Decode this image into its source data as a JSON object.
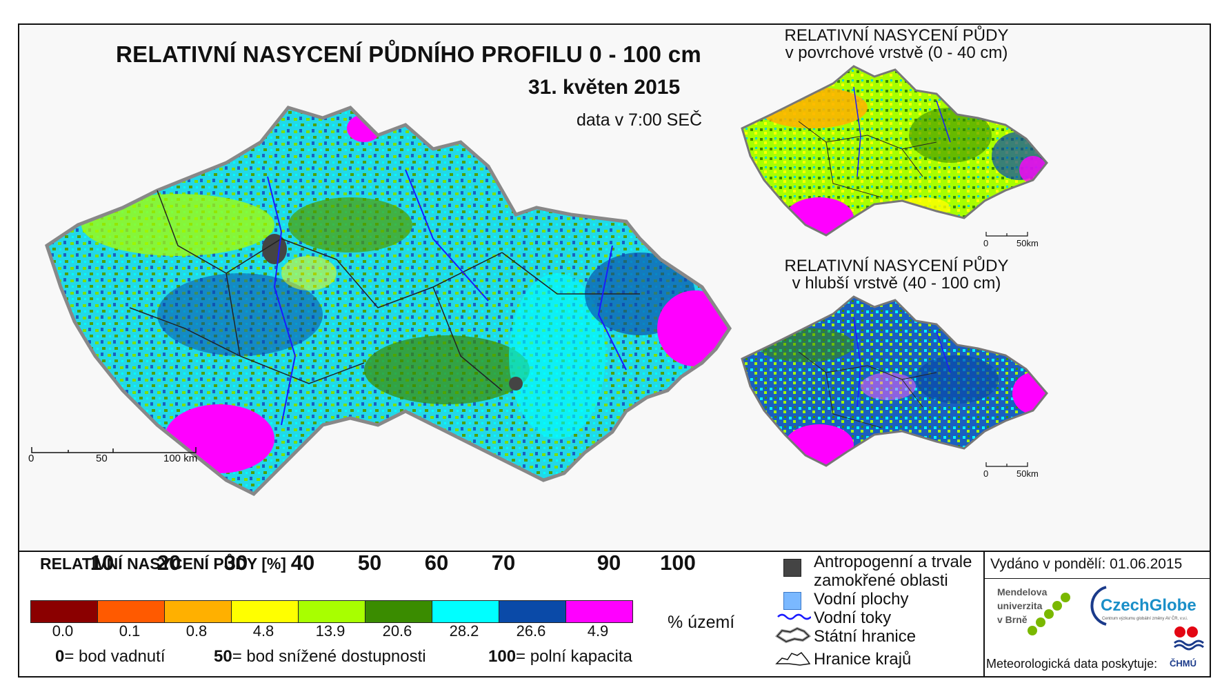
{
  "main_map": {
    "title": "RELATIVNÍ NASYCENÍ PŮDNÍHO PROFILU 0 - 100 cm",
    "date": "31. květen 2015",
    "data_time": "data v 7:00 SEČ",
    "scale": [
      "0",
      "50",
      "100 km"
    ]
  },
  "inset_top": {
    "title_line1": "RELATIVNÍ NASYCENÍ PŮDY",
    "title_line2": "v povrchové vrstvě (0 - 40 cm)",
    "scale": [
      "0",
      "50km"
    ]
  },
  "inset_bottom": {
    "title_line1": "RELATIVNÍ NASYCENÍ PŮDY",
    "title_line2": "v hlubší vrstvě (40 - 100 cm)",
    "scale": [
      "0",
      "50km"
    ]
  },
  "legend": {
    "title": "RELATIVNÍ NASYCENÍ PŮDY [%]",
    "thresholds": [
      "10",
      "20",
      "30",
      "40",
      "50",
      "60",
      "70",
      "90",
      "100"
    ],
    "classes": [
      {
        "color": "#8b0000",
        "percent_area": "0.0"
      },
      {
        "color": "#ff5a00",
        "percent_area": "0.1"
      },
      {
        "color": "#ffb000",
        "percent_area": "0.8"
      },
      {
        "color": "#ffff00",
        "percent_area": "4.8"
      },
      {
        "color": "#a8ff00",
        "percent_area": "13.9"
      },
      {
        "color": "#3a8c00",
        "percent_area": "20.6"
      },
      {
        "color": "#00ffff",
        "percent_area": "28.2"
      },
      {
        "color": "#0a4aa8",
        "percent_area": "26.6"
      },
      {
        "color": "#ff00ff",
        "percent_area": "4.9"
      }
    ],
    "unit_label": "% území",
    "definitions": [
      {
        "value": "0",
        "text": "= bod vadnutí"
      },
      {
        "value": "50",
        "text": "= bod snížené dostupnosti"
      },
      {
        "value": "100",
        "text": "= polní kapacita"
      }
    ]
  },
  "symbols": {
    "anthropogenic_line1": "Antropogenní a trvale",
    "anthropogenic_line2": "zamokřené oblasti",
    "water_areas": "Vodní plochy",
    "streams": "Vodní toky",
    "state_border": "Státní hranice",
    "region_border": "Hranice krajů"
  },
  "issued": "Vydáno v pondělí: 01.06.2015",
  "logos": {
    "mendelu": [
      "Mendelova",
      "univerzita",
      "v Brně"
    ],
    "czechglobe": "CzechGlobe",
    "czechglobe_sub": "Centrum výzkumu globální změny AV ČR, v.v.i.",
    "chmu": "ČHMÚ"
  },
  "data_provider": "Meteorologická data poskytuje:",
  "colors": {
    "anthropogenic": "#444444",
    "water": "#7ab8ff",
    "stream": "#1a1aff"
  }
}
